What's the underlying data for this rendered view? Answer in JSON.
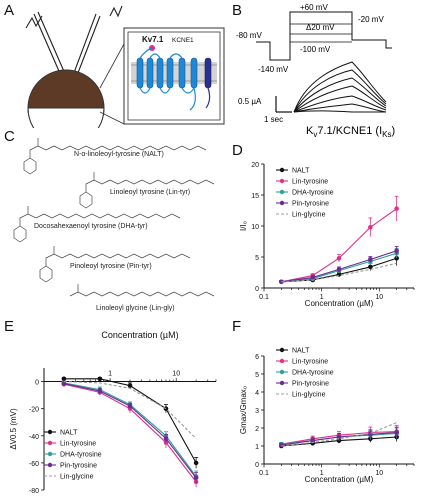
{
  "panels": {
    "a": "A",
    "b": "B",
    "c": "C",
    "d": "D",
    "e": "E",
    "f": "F"
  },
  "panel_a": {
    "channel_label": "Kv7.1",
    "subunit_label": "KCNE1"
  },
  "panel_b": {
    "voltages": {
      "top": "+60 mV",
      "step": "Δ20 mV",
      "bottom": "-100 mV",
      "holding": "-80 mV",
      "hyper": "-140 mV",
      "tail": "-20 mV"
    },
    "scale_current": "0.5 µA",
    "scale_time": "1 sec",
    "title_main": "K",
    "title_sub1": "v",
    "title_mid": "7.1/KCNE1 (I",
    "title_sub2": "Ks",
    "title_end": ")"
  },
  "panel_c": {
    "compounds": [
      "N-α-linoleoyl-tyrosine (NALT)",
      "Linoleoyl tyrosine (Lin-tyr)",
      "Docosahexaenoyl tyrosine (DHA-tyr)",
      "Pinoleoyl tyrosine (Pin-tyr)",
      "Linoleoyl glycine (Lin-gly)"
    ]
  },
  "colors": {
    "NALT": "#111111",
    "Lin-tyrosine": "#e0308a",
    "DHA-tyrosine": "#2aa39a",
    "Pin-tyrosine": "#6a2c91",
    "Lin-glycine": "#9a9a9a"
  },
  "chart_data": [
    {
      "id": "D",
      "type": "line",
      "xscale": "log",
      "xlabel": "Concentration (µM)",
      "ylabel": "I/I₀",
      "xlim": [
        0.1,
        40
      ],
      "ylim": [
        0,
        20
      ],
      "xticks": [
        0.1,
        1,
        10
      ],
      "xtick_labels": [
        "0.1",
        "1",
        "10"
      ],
      "yticks": [
        0,
        5,
        10,
        15,
        20
      ],
      "ytick_labels": [
        "0",
        "5",
        "10",
        "15",
        "20"
      ],
      "legend_placement": "top-left",
      "series": [
        {
          "name": "NALT",
          "x": [
            0.2,
            0.7,
            2.0,
            7.0,
            20.0
          ],
          "y": [
            1.0,
            1.3,
            2.2,
            3.4,
            4.8
          ],
          "err": [
            0.2,
            0.3,
            0.4,
            0.6,
            1.2
          ],
          "style": "solid"
        },
        {
          "name": "Lin-tyrosine",
          "x": [
            0.2,
            0.7,
            2.0,
            7.0,
            20.0
          ],
          "y": [
            1.0,
            2.0,
            4.8,
            9.8,
            12.8
          ],
          "err": [
            0.2,
            0.3,
            0.6,
            1.5,
            2.0
          ],
          "style": "solid"
        },
        {
          "name": "DHA-tyrosine",
          "x": [
            0.2,
            0.7,
            2.0,
            7.0,
            20.0
          ],
          "y": [
            1.0,
            1.5,
            2.8,
            4.3,
            5.6
          ],
          "err": [
            0.2,
            0.3,
            0.4,
            0.6,
            0.8
          ],
          "style": "solid"
        },
        {
          "name": "Pin-tyrosine",
          "x": [
            0.2,
            0.7,
            2.0,
            7.0,
            20.0
          ],
          "y": [
            1.0,
            1.7,
            3.0,
            4.6,
            6.0
          ],
          "err": [
            0.2,
            0.3,
            0.4,
            0.5,
            0.7
          ],
          "style": "solid"
        },
        {
          "name": "Lin-glycine",
          "x": [
            0.2,
            0.7,
            2.0,
            7.0,
            20.0
          ],
          "y": [
            1.0,
            1.3,
            2.0,
            3.0,
            4.0
          ],
          "err": [
            0,
            0,
            0,
            0,
            0
          ],
          "style": "dashed",
          "no_markers": true
        }
      ]
    },
    {
      "id": "E",
      "type": "line",
      "xscale": "log",
      "title": "Concentration (µM)",
      "ylabel": "ΔV0.5 (mV)",
      "xlim": [
        0.1,
        40
      ],
      "ylim": [
        -80,
        10
      ],
      "xticks": [
        1,
        10
      ],
      "xtick_labels": [
        "1",
        "10"
      ],
      "yticks": [
        0,
        -20,
        -40,
        -60,
        -80
      ],
      "ytick_labels": [
        "0",
        "-20",
        "-40",
        "-60",
        "-80"
      ],
      "legend_placement": "bottom-left",
      "series": [
        {
          "name": "NALT",
          "x": [
            0.2,
            0.7,
            2.0,
            7.0,
            20.0
          ],
          "y": [
            2.0,
            2.0,
            -3.0,
            -20.0,
            -60.0
          ],
          "err": [
            1,
            1,
            2,
            3,
            4
          ],
          "style": "solid"
        },
        {
          "name": "Lin-tyrosine",
          "x": [
            0.2,
            0.7,
            2.0,
            7.0,
            20.0
          ],
          "y": [
            -2.0,
            -8.0,
            -20.0,
            -45.0,
            -74.0
          ],
          "err": [
            1,
            2,
            3,
            4,
            4
          ],
          "style": "solid"
        },
        {
          "name": "DHA-tyrosine",
          "x": [
            0.2,
            0.7,
            2.0,
            7.0,
            20.0
          ],
          "y": [
            -1.0,
            -6.0,
            -17.0,
            -40.0,
            -70.0
          ],
          "err": [
            1,
            2,
            2,
            3,
            4
          ],
          "style": "solid"
        },
        {
          "name": "Pin-tyrosine",
          "x": [
            0.2,
            0.7,
            2.0,
            7.0,
            20.0
          ],
          "y": [
            -1.5,
            -7.0,
            -18.0,
            -42.0,
            -71.0
          ],
          "err": [
            1,
            2,
            2,
            3,
            4
          ],
          "style": "solid"
        },
        {
          "name": "Lin-glycine",
          "x": [
            0.2,
            0.7,
            2.0,
            7.0,
            20.0
          ],
          "y": [
            0.0,
            -1.0,
            -5.0,
            -20.0,
            -42.0
          ],
          "err": [
            0,
            0,
            0,
            0,
            0
          ],
          "style": "dashed",
          "no_markers": true
        }
      ]
    },
    {
      "id": "F",
      "type": "line",
      "xscale": "log",
      "xlabel": "Concentration (µM)",
      "ylabel": "Gmax/Gmax₀",
      "xlim": [
        0.1,
        40
      ],
      "ylim": [
        0,
        6
      ],
      "xticks": [
        0.1,
        1,
        10
      ],
      "xtick_labels": [
        "0.1",
        "1",
        "10"
      ],
      "yticks": [
        0,
        1,
        2,
        3,
        4,
        5,
        6
      ],
      "ytick_labels": [
        "0",
        "1",
        "2",
        "3",
        "4",
        "5",
        "6"
      ],
      "legend_placement": "top-left",
      "series": [
        {
          "name": "NALT",
          "x": [
            0.2,
            0.7,
            2.0,
            7.0,
            20.0
          ],
          "y": [
            1.0,
            1.15,
            1.3,
            1.4,
            1.5
          ],
          "err": [
            0.1,
            0.1,
            0.15,
            0.2,
            0.25
          ],
          "style": "solid"
        },
        {
          "name": "Lin-tyrosine",
          "x": [
            0.2,
            0.7,
            2.0,
            7.0,
            20.0
          ],
          "y": [
            1.1,
            1.4,
            1.6,
            1.75,
            1.8
          ],
          "err": [
            0.1,
            0.15,
            0.2,
            0.3,
            0.35
          ],
          "style": "solid"
        },
        {
          "name": "DHA-tyrosine",
          "x": [
            0.2,
            0.7,
            2.0,
            7.0,
            20.0
          ],
          "y": [
            1.1,
            1.3,
            1.5,
            1.6,
            1.7
          ],
          "err": [
            0.1,
            0.15,
            0.2,
            0.25,
            0.3
          ],
          "style": "solid"
        },
        {
          "name": "Pin-tyrosine",
          "x": [
            0.2,
            0.7,
            2.0,
            7.0,
            20.0
          ],
          "y": [
            1.05,
            1.3,
            1.5,
            1.65,
            1.75
          ],
          "err": [
            0.1,
            0.15,
            0.2,
            0.25,
            0.3
          ],
          "style": "solid"
        },
        {
          "name": "Lin-glycine",
          "x": [
            0.2,
            0.7,
            2.0,
            7.0,
            20.0
          ],
          "y": [
            1.0,
            1.2,
            1.4,
            1.7,
            2.3
          ],
          "err": [
            0,
            0,
            0,
            0,
            0
          ],
          "style": "dashed",
          "no_markers": true
        }
      ]
    }
  ]
}
